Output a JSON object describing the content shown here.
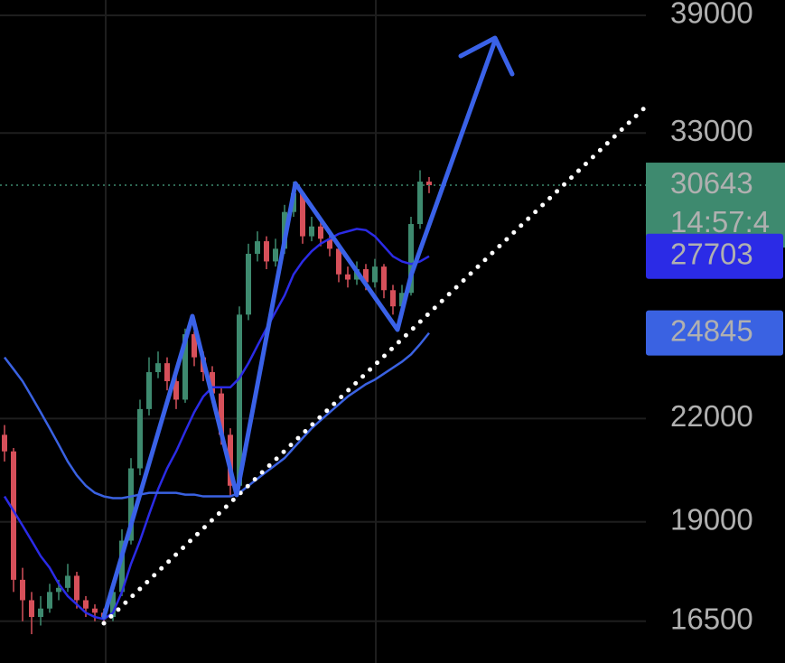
{
  "chart_data": {
    "type": "candlestick",
    "log": true,
    "grid": true,
    "ylim": [
      15550,
      39860
    ],
    "yticks": [
      16500,
      19000,
      22000,
      33000,
      39000
    ],
    "categories": [
      null,
      null,
      null,
      null,
      null,
      null,
      null,
      null,
      null,
      null,
      null,
      null,
      null,
      null,
      null,
      null,
      null,
      null,
      null,
      null,
      null,
      null,
      null,
      null,
      null,
      null,
      null,
      null,
      null,
      null,
      null,
      null,
      null,
      null,
      null,
      null,
      null,
      null,
      null,
      null,
      null,
      null,
      null,
      null,
      null,
      null,
      null,
      null
    ],
    "up_color": "#3e8a6f",
    "down_color": "#d6505a",
    "open": [
      21500,
      21000,
      17500,
      17000,
      16600,
      16800,
      17200,
      17300,
      17600,
      17000,
      16800,
      16700,
      16600,
      17200,
      18500,
      20500,
      22300,
      23500,
      23800,
      23200,
      22600,
      24800,
      24000,
      23500,
      22800,
      21500,
      20000,
      25500,
      27800,
      28300,
      27500,
      28000,
      29500,
      30300,
      28500,
      28900,
      28400,
      28000,
      27000,
      26800,
      27200,
      26700,
      27300,
      26400,
      25800,
      26300,
      29000,
      30800
    ],
    "high": [
      21800,
      21100,
      17800,
      17200,
      17100,
      17400,
      17500,
      17900,
      17700,
      17100,
      16900,
      16800,
      17400,
      18800,
      20800,
      22600,
      24000,
      24200,
      24000,
      23400,
      25000,
      24900,
      24200,
      23700,
      23000,
      21700,
      25800,
      28200,
      28700,
      28500,
      28400,
      29800,
      30800,
      30400,
      29300,
      29100,
      28600,
      28100,
      27300,
      27500,
      27400,
      27600,
      27400,
      26600,
      26600,
      29300,
      31300,
      31000
    ],
    "low": [
      20700,
      17200,
      16500,
      16200,
      16400,
      16700,
      17000,
      17200,
      16800,
      16600,
      16500,
      16500,
      16500,
      17100,
      18400,
      20300,
      22100,
      23300,
      22900,
      22300,
      22500,
      23700,
      23200,
      22500,
      21200,
      19700,
      19900,
      25300,
      27500,
      27200,
      27300,
      27800,
      29300,
      28200,
      28300,
      28100,
      27700,
      26700,
      26500,
      26600,
      26400,
      26500,
      26100,
      25500,
      25600,
      26200,
      28800,
      30300
    ],
    "close": [
      21000,
      17500,
      17000,
      16600,
      16800,
      17200,
      17300,
      17600,
      17000,
      16800,
      16700,
      16600,
      17200,
      18500,
      20500,
      22300,
      23500,
      23800,
      23200,
      22600,
      24800,
      24000,
      23500,
      22800,
      21500,
      20000,
      25500,
      27800,
      28300,
      27500,
      28000,
      29500,
      30300,
      28500,
      28900,
      28400,
      28000,
      27000,
      26800,
      27200,
      26700,
      27300,
      26400,
      25800,
      26300,
      29000,
      30800,
      30643
    ],
    "series": [
      {
        "color": "#2b2be6",
        "values": [
          19700,
          19300,
          18900,
          18500,
          18100,
          17800,
          17400,
          17100,
          16900,
          16700,
          16600,
          16550,
          16700,
          17200,
          17900,
          18500,
          19200,
          19900,
          20500,
          21000,
          21600,
          22200,
          22700,
          23000,
          23000,
          23000,
          23300,
          23800,
          24400,
          25000,
          25600,
          26200,
          27000,
          27500,
          27900,
          28200,
          28400,
          28600,
          28700,
          28800,
          28750,
          28500,
          28100,
          27700,
          27500,
          27400,
          27500,
          27703
        ]
      },
      {
        "color": "#3a62e2",
        "values": [
          24000,
          23600,
          23200,
          22700,
          22200,
          21700,
          21200,
          20700,
          20300,
          20000,
          19800,
          19700,
          19650,
          19650,
          19700,
          19750,
          19800,
          19800,
          19800,
          19800,
          19750,
          19750,
          19700,
          19700,
          19700,
          19700,
          19800,
          20000,
          20200,
          20400,
          20600,
          20800,
          21100,
          21400,
          21700,
          21950,
          22200,
          22450,
          22700,
          22900,
          23100,
          23250,
          23450,
          23650,
          23850,
          24100,
          24450,
          24845
        ]
      }
    ],
    "countdown": "14:57:4"
  }
}
